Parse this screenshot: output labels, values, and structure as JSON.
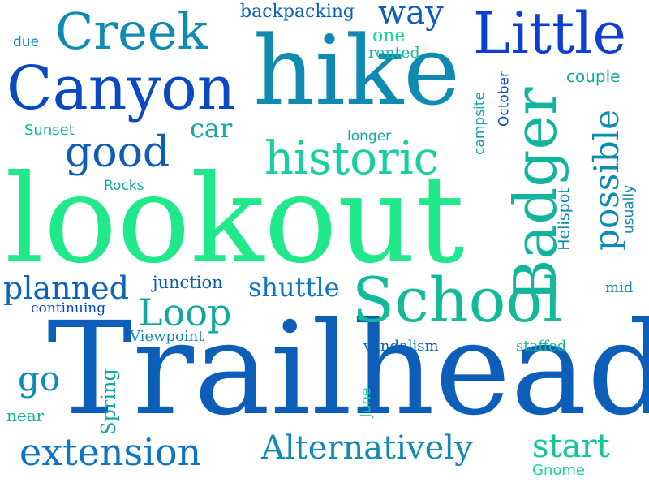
{
  "words": {
    "lookout": "lookout",
    "trailhead": "Trailhead",
    "hike": "hike",
    "canyon": "Canyon",
    "creek": "Creek",
    "little": "Little",
    "badger": "Badger",
    "school": "School",
    "historic": "historic",
    "good": "good",
    "extension": "extension",
    "alternatively": "Alternatively",
    "loop": "Loop",
    "planned": "planned",
    "shuttle": "shuttle",
    "start": "start",
    "possible": "possible",
    "go": "go",
    "car": "car",
    "backpacking": "backpacking",
    "way": "way",
    "one": "one",
    "rented": "rented",
    "due": "due",
    "sunset": "Sunset",
    "rocks": "Rocks",
    "longer": "longer",
    "campsite": "campsite",
    "october": "October",
    "couple": "couple",
    "helispot": "Helispot",
    "usually": "usually",
    "junction": "junction",
    "continuing": "continuing",
    "viewpoint": "Viewpoint",
    "vandalism": "vandalism",
    "staffed": "staffed",
    "mid": "mid",
    "near": "near",
    "spring": "Spring",
    "june": "June",
    "gnome": "Gnome"
  }
}
